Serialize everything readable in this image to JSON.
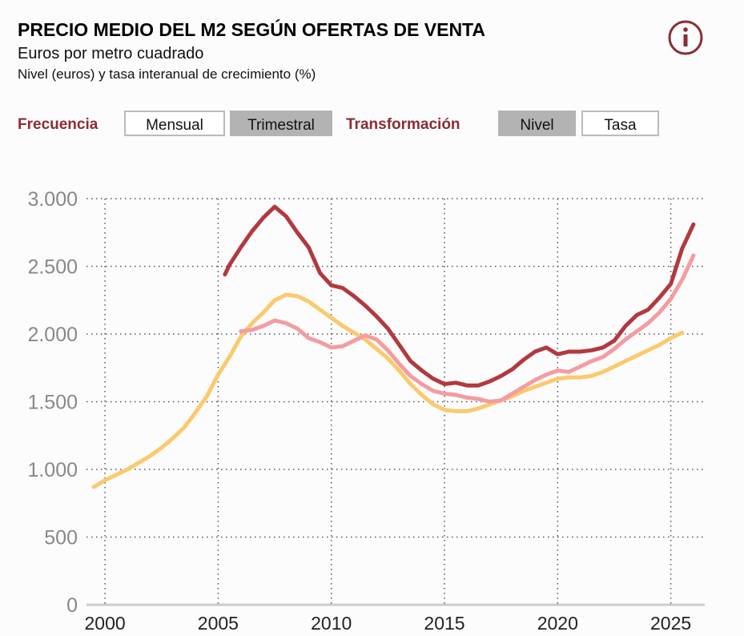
{
  "chart_data": {
    "type": "line",
    "title": "PRECIO MEDIO DEL M2 SEGÚN OFERTAS DE VENTA",
    "subtitle": "Euros por metro cuadrado",
    "note": "Nivel (euros) y tasa interanual de crecimiento (%)",
    "xlim": [
      1998.9,
      2026.5
    ],
    "xticks": [
      2000,
      2005,
      2010,
      2015,
      2020,
      2025
    ],
    "ylim": [
      0,
      3000
    ],
    "yticks": [
      0,
      500,
      {
        "value": 1000,
        "label": "1.000"
      },
      {
        "value": 1500,
        "label": "1.500"
      },
      {
        "value": 2000,
        "label": "2.000"
      },
      {
        "value": 2500,
        "label": "2.500"
      },
      {
        "value": 3000,
        "label": "3.000"
      }
    ],
    "grid": true,
    "series": [
      {
        "color": "#fbc96e",
        "x": [
          1999.5,
          2000,
          2000.5,
          2001,
          2001.5,
          2002,
          2002.5,
          2003,
          2003.5,
          2004,
          2004.5,
          2005,
          2005.5,
          2006,
          2006.5,
          2007,
          2007.5,
          2008,
          2008.5,
          2009,
          2009.5,
          2010,
          2010.5,
          2011,
          2011.5,
          2012,
          2012.5,
          2013,
          2013.5,
          2014,
          2014.5,
          2015,
          2015.5,
          2016,
          2016.5,
          2017,
          2017.5,
          2018,
          2018.5,
          2019,
          2019.5,
          2020,
          2020.5,
          2021,
          2021.5,
          2022,
          2022.5,
          2023,
          2023.5,
          2024,
          2024.5,
          2025,
          2025.5
        ],
        "values": [
          870,
          920,
          960,
          1000,
          1050,
          1100,
          1160,
          1230,
          1310,
          1420,
          1540,
          1700,
          1830,
          1980,
          2080,
          2160,
          2250,
          2290,
          2280,
          2240,
          2180,
          2120,
          2060,
          2010,
          1960,
          1890,
          1820,
          1730,
          1630,
          1550,
          1480,
          1440,
          1430,
          1430,
          1450,
          1480,
          1510,
          1540,
          1580,
          1610,
          1640,
          1670,
          1680,
          1680,
          1690,
          1720,
          1760,
          1800,
          1840,
          1880,
          1920,
          1970,
          2010
        ]
      },
      {
        "color": "#f49ca1",
        "x": [
          2006,
          2006.5,
          2007,
          2007.5,
          2008,
          2008.5,
          2009,
          2009.5,
          2010,
          2010.5,
          2011,
          2011.5,
          2012,
          2012.5,
          2013,
          2013.5,
          2014,
          2014.5,
          2015,
          2015.5,
          2016,
          2016.5,
          2017,
          2017.5,
          2018,
          2018.5,
          2019,
          2019.5,
          2020,
          2020.5,
          2021,
          2021.5,
          2022,
          2022.5,
          2023,
          2023.5,
          2024,
          2024.5,
          2025,
          2025.5,
          2026
        ],
        "values": [
          2020,
          2030,
          2060,
          2100,
          2080,
          2040,
          1970,
          1940,
          1900,
          1910,
          1950,
          1990,
          1960,
          1880,
          1780,
          1690,
          1630,
          1580,
          1560,
          1550,
          1530,
          1520,
          1500,
          1510,
          1560,
          1610,
          1660,
          1700,
          1730,
          1720,
          1760,
          1800,
          1830,
          1890,
          1960,
          2020,
          2080,
          2160,
          2260,
          2400,
          2580
        ]
      },
      {
        "color": "#b2393f",
        "x": [
          2005.3,
          2005.5,
          2006,
          2006.5,
          2007,
          2007.5,
          2008,
          2008.5,
          2009,
          2009.5,
          2010,
          2010.5,
          2011,
          2011.5,
          2012,
          2012.5,
          2013,
          2013.5,
          2014,
          2014.5,
          2015,
          2015.5,
          2016,
          2016.5,
          2017,
          2017.5,
          2018,
          2018.5,
          2019,
          2019.5,
          2020,
          2020.5,
          2021,
          2021.5,
          2022,
          2022.5,
          2023,
          2023.5,
          2024,
          2024.5,
          2025,
          2025.5,
          2026
        ],
        "values": [
          2440,
          2510,
          2640,
          2760,
          2860,
          2940,
          2870,
          2750,
          2640,
          2450,
          2360,
          2340,
          2280,
          2210,
          2130,
          2040,
          1920,
          1800,
          1730,
          1670,
          1630,
          1640,
          1620,
          1620,
          1650,
          1690,
          1740,
          1810,
          1870,
          1900,
          1850,
          1870,
          1870,
          1880,
          1900,
          1950,
          2060,
          2140,
          2180,
          2270,
          2370,
          2630,
          2810
        ]
      }
    ]
  },
  "controls": {
    "frequency": {
      "label": "Frecuencia",
      "options": [
        "Mensual",
        "Trimestral"
      ],
      "selected": 1
    },
    "transformation": {
      "label": "Transformación",
      "options": [
        "Nivel",
        "Tasa"
      ],
      "selected": 0
    }
  }
}
